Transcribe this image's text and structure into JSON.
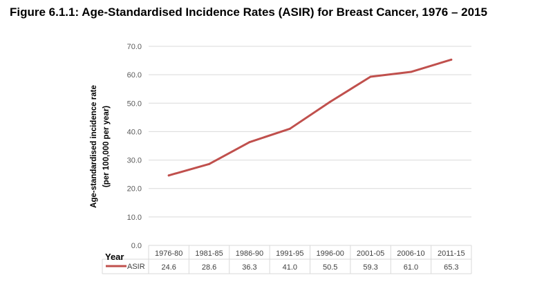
{
  "title": "Figure 6.1.1: Age-Standardised Incidence Rates (ASIR) for Breast Cancer, 1976 – 2015",
  "chart_data": {
    "type": "line",
    "title": "Figure 6.1.1: Age-Standardised Incidence Rates (ASIR) for Breast Cancer, 1976 – 2015",
    "xlabel": "Year",
    "ylabel_lines": [
      "Age-standardised incidence rate",
      "(per 100,000 per year)"
    ],
    "categories": [
      "1976-80",
      "1981-85",
      "1986-90",
      "1991-95",
      "1996-00",
      "2001-05",
      "2006-10",
      "2011-15"
    ],
    "series": [
      {
        "name": "ASIR",
        "color": "#c0504d",
        "values": [
          24.6,
          28.6,
          36.3,
          41.0,
          50.5,
          59.3,
          61.0,
          65.3
        ]
      }
    ],
    "value_labels": [
      "24.6",
      "28.6",
      "36.3",
      "41.0",
      "50.5",
      "59.3",
      "61.0",
      "65.3"
    ],
    "ylim": [
      0,
      70
    ],
    "yticks": [
      0,
      10,
      20,
      30,
      40,
      50,
      60,
      70
    ],
    "ytick_labels": [
      "0.0",
      "10.0",
      "20.0",
      "30.0",
      "40.0",
      "50.0",
      "60.0",
      "70.0"
    ],
    "grid": true,
    "legend": "data-table"
  }
}
